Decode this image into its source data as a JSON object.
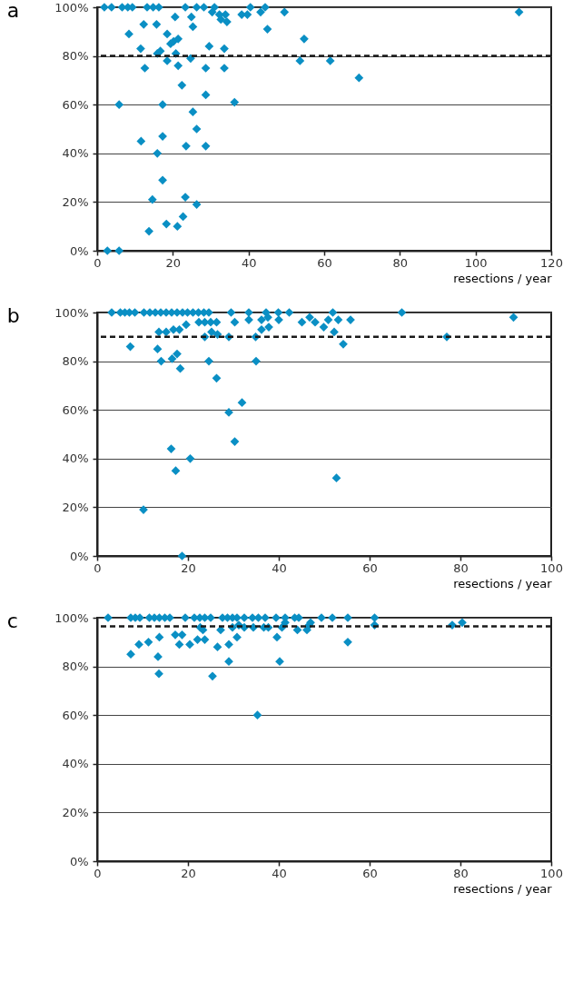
{
  "chart_data": [
    {
      "type": "scatter",
      "title": "a",
      "xlabel": "resections / year",
      "marker": "diamond",
      "grid": "y",
      "xlim": [
        0,
        120
      ],
      "xticks": [
        0,
        20,
        40,
        60,
        80,
        100,
        120
      ],
      "ylim": [
        0,
        100
      ],
      "yticks": [
        {
          "value": 0,
          "label": "0%"
        },
        {
          "value": 20,
          "label": "20%"
        },
        {
          "value": 40,
          "label": "40%"
        },
        {
          "value": 60,
          "label": "60%"
        },
        {
          "value": 80,
          "label": "80%"
        },
        {
          "value": 100,
          "label": "100%"
        }
      ],
      "ref_lines": [
        {
          "axis": "y",
          "value": 80,
          "color": "#1a1a1a",
          "line_style": "dashed"
        }
      ],
      "series": [
        {
          "color": "#0a8fc4",
          "x": [
            1.9,
            3.8,
            6.6,
            8.1,
            9.3,
            13.2,
            14.8,
            16.3,
            23.3,
            26.3,
            28.2,
            31,
            40.5,
            44.4,
            49.5,
            20.6,
            24.9,
            25.3,
            30.4,
            32.3,
            33.9,
            32.7,
            34.3,
            38.2,
            39.7,
            43.2,
            45,
            12.3,
            15.7,
            8.4,
            18.5,
            19.4,
            20.2,
            21.4,
            11.5,
            29.6,
            33.6,
            54.7,
            15.9,
            16.7,
            20.8,
            24.7,
            18.5,
            12.6,
            21.4,
            28.7,
            33.6,
            53.6,
            61.6,
            69.2,
            22.4,
            28.7,
            5.8,
            17.3,
            36.3,
            25.3,
            26.3,
            11.6,
            17.3,
            23.5,
            28.7,
            15.9,
            17.3,
            14.6,
            23.3,
            26.3,
            22.7,
            18.3,
            21.2,
            13.7,
            2.7,
            5.8,
            111.5
          ],
          "values": [
            100,
            100,
            100,
            100,
            100,
            100,
            100,
            100,
            100,
            100,
            100,
            100,
            100,
            100,
            98,
            96,
            96,
            92,
            98,
            97,
            97,
            95,
            94,
            97,
            97,
            98,
            91,
            93,
            93,
            89,
            89,
            85,
            86,
            87,
            83,
            84,
            83,
            87,
            81,
            82,
            81,
            79,
            78,
            75,
            76,
            75,
            75,
            78,
            78,
            71,
            68,
            64,
            60,
            60,
            61,
            57,
            50,
            45,
            47,
            43,
            43,
            40,
            29,
            21,
            22,
            19,
            14,
            11,
            10,
            8,
            0,
            0,
            98
          ]
        }
      ]
    },
    {
      "type": "scatter",
      "title": "b",
      "xlabel": "resections / year",
      "marker": "diamond",
      "grid": "y",
      "xlim": [
        0,
        100
      ],
      "xticks": [
        0,
        20,
        40,
        60,
        80,
        100
      ],
      "ylim": [
        0,
        100
      ],
      "yticks": [
        {
          "value": 0,
          "label": "0%"
        },
        {
          "value": 20,
          "label": "20%"
        },
        {
          "value": 40,
          "label": "40%"
        },
        {
          "value": 60,
          "label": "60%"
        },
        {
          "value": 80,
          "label": "80%"
        },
        {
          "value": 100,
          "label": "100%"
        }
      ],
      "ref_lines": [
        {
          "axis": "y",
          "value": 90,
          "color": "#1a1a1a",
          "line_style": "dashed"
        }
      ],
      "series": [
        {
          "color": "#0a8fc4",
          "x": [
            3.2,
            5.1,
            6.1,
            7.1,
            8.3,
            10.3,
            11.6,
            12.8,
            14,
            15.2,
            16.4,
            17.6,
            18.8,
            19.9,
            21.1,
            22.3,
            23.5,
            24.6,
            29.5,
            33.4,
            37.2,
            39.9,
            42.3,
            51.9,
            30.3,
            33.4,
            36.2,
            37.6,
            40,
            36.2,
            37.8,
            45.1,
            46.8,
            48,
            49.9,
            50.9,
            53.1,
            55.8,
            52.2,
            54.2,
            13.6,
            15.2,
            16.8,
            18.1,
            19.6,
            22.4,
            23.7,
            25,
            26.3,
            23.7,
            25.2,
            26.5,
            29,
            34.9,
            7.3,
            13.3,
            16.5,
            17.6,
            14.1,
            24.6,
            35,
            18.3,
            26.3,
            31.9,
            29,
            30.3,
            16.3,
            20.5,
            17.3,
            10.2,
            18.7,
            52.7,
            67.1,
            91.7,
            77
          ],
          "values": [
            100,
            100,
            100,
            100,
            100,
            100,
            100,
            100,
            100,
            100,
            100,
            100,
            100,
            100,
            100,
            100,
            100,
            100,
            100,
            100,
            100,
            100,
            100,
            100,
            96,
            97,
            97,
            98,
            97,
            93,
            94,
            96,
            98,
            96,
            94,
            97,
            97,
            97,
            92,
            87,
            92,
            92,
            93,
            93,
            95,
            96,
            96,
            96,
            96,
            90,
            92,
            91,
            90,
            90,
            86,
            85,
            81,
            83,
            80,
            80,
            80,
            77,
            73,
            63,
            59,
            47,
            44,
            40,
            35,
            19,
            0,
            32,
            100,
            98,
            90
          ]
        }
      ]
    },
    {
      "type": "scatter",
      "title": "c",
      "xlabel": "resections / year",
      "marker": "diamond",
      "grid": "y",
      "xlim": [
        0,
        100
      ],
      "xticks": [
        0,
        20,
        40,
        60,
        80,
        100
      ],
      "ylim": [
        0,
        100
      ],
      "yticks": [
        {
          "value": 0,
          "label": "0%"
        },
        {
          "value": 20,
          "label": "20%"
        },
        {
          "value": 40,
          "label": "40%"
        },
        {
          "value": 60,
          "label": "60%"
        },
        {
          "value": 80,
          "label": "80%"
        },
        {
          "value": 100,
          "label": "100%"
        }
      ],
      "ref_lines": [
        {
          "axis": "y",
          "value": 96.5,
          "color": "#1a1a1a",
          "line_style": "dashed"
        }
      ],
      "series": [
        {
          "color": "#0a8fc4",
          "x": [
            2.4,
            7.4,
            8.4,
            9.4,
            11.5,
            12.6,
            13.7,
            14.9,
            16,
            19.4,
            21.4,
            22.6,
            23.7,
            25,
            27.6,
            28.7,
            29.8,
            30.8,
            32.4,
            34.2,
            35.5,
            37,
            39.4,
            41.4,
            43.5,
            44.4,
            49.4,
            51.8,
            55.2,
            41.4,
            47,
            46.7,
            31.2,
            32.4,
            29.8,
            34.4,
            36.7,
            37.7,
            22.7,
            23.3,
            27.2,
            40.7,
            44.1,
            46.2,
            17.2,
            18.7,
            30.8,
            13.7,
            39.6,
            22.1,
            23.7,
            11.3,
            55.2,
            9.2,
            18.1,
            20.4,
            29,
            26.5,
            7.4,
            13.4,
            29,
            40.2,
            13.6,
            25.4,
            35.3,
            61.1,
            61.1,
            78.2,
            80.4
          ],
          "values": [
            100,
            100,
            100,
            100,
            100,
            100,
            100,
            100,
            100,
            100,
            100,
            100,
            100,
            100,
            100,
            100,
            100,
            100,
            100,
            100,
            100,
            100,
            100,
            100,
            100,
            100,
            100,
            100,
            100,
            98,
            98,
            97,
            97,
            96,
            96,
            96,
            96,
            96,
            96,
            95,
            95,
            96,
            95,
            95,
            93,
            93,
            92,
            92,
            92,
            91,
            91,
            90,
            90,
            89,
            89,
            89,
            89,
            88,
            85,
            84,
            82,
            82,
            77,
            76,
            60,
            100,
            97,
            97,
            98
          ]
        }
      ]
    }
  ]
}
